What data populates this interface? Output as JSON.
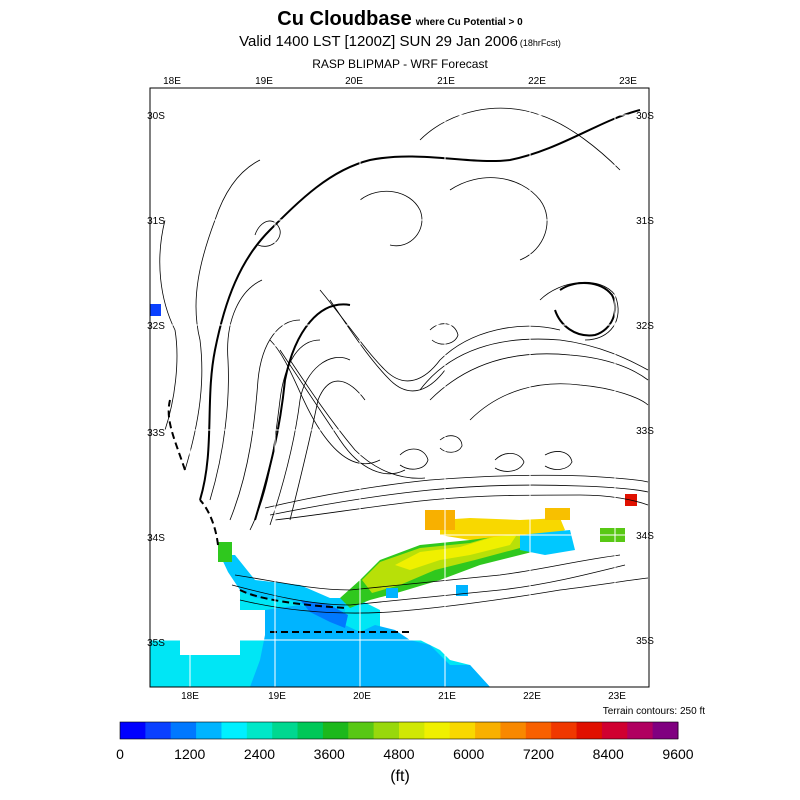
{
  "title": {
    "main": "Cu Cloudbase",
    "qualifier": "where Cu Potential > 0",
    "valid": "Valid 1400 LST [1200Z] SUN 29 Jan 2006",
    "forecast_hours": "(18hrFcst)",
    "subtitle": "RASP BLIPMAP - WRF Forecast"
  },
  "map": {
    "lon_labels_top": [
      "18E",
      "19E",
      "20E",
      "21E",
      "22E",
      "23E"
    ],
    "lon_labels_bottom": [
      "18E",
      "19E",
      "20E",
      "21E",
      "22E",
      "23E"
    ],
    "lat_labels_left": [
      "30S",
      "31S",
      "32S",
      "33S",
      "34S",
      "35S"
    ],
    "lat_labels_right": [
      "30S",
      "31S",
      "32S",
      "33S",
      "34S",
      "35S"
    ],
    "terrain_note": "Terrain contours: 250 ft",
    "background_color": "#ffffff",
    "contour_color": "#000000"
  },
  "colorbar": {
    "unit": "(ft)",
    "labels": [
      "0",
      "1200",
      "2400",
      "3600",
      "4800",
      "6000",
      "7200",
      "8400",
      "9600"
    ],
    "colors": [
      "#0000ff",
      "#0a40ff",
      "#0078ff",
      "#00b4ff",
      "#00f0ff",
      "#00e8c8",
      "#00d890",
      "#00c858",
      "#1cb81c",
      "#58c814",
      "#98d80c",
      "#d0e804",
      "#f0f000",
      "#f8d800",
      "#f8b000",
      "#f88800",
      "#f86000",
      "#f03800",
      "#e01000",
      "#d00030",
      "#b00060",
      "#800080"
    ]
  }
}
